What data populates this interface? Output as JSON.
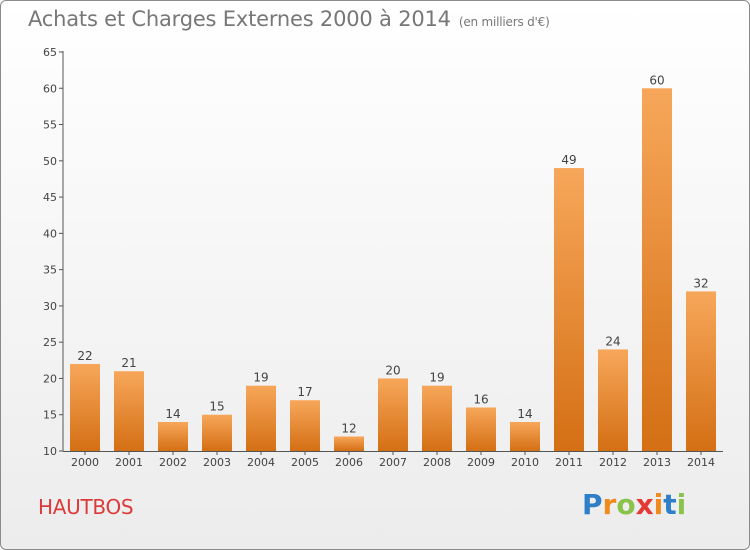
{
  "chart_data": {
    "type": "bar",
    "title": "Achats et Charges Externes 2000 à 2014",
    "subtitle": "(en milliers d'€)",
    "categories": [
      "2000",
      "2001",
      "2002",
      "2003",
      "2004",
      "2005",
      "2006",
      "2007",
      "2008",
      "2009",
      "2010",
      "2011",
      "2012",
      "2013",
      "2014"
    ],
    "values": [
      22,
      21,
      14,
      15,
      19,
      17,
      12,
      20,
      19,
      16,
      14,
      49,
      24,
      60,
      32
    ],
    "ylim": [
      10,
      65
    ],
    "yticks": [
      10,
      15,
      20,
      25,
      30,
      35,
      40,
      45,
      50,
      55,
      60,
      65
    ],
    "grid": false,
    "bar_color_top": "#f7a75a",
    "bar_color_bottom": "#d46f14"
  },
  "footer": {
    "city": "HAUTBOS",
    "logo_letters": [
      "P",
      "r",
      "o",
      "x",
      "i",
      "t",
      "i"
    ],
    "logo_colors": [
      "#2e7ec8",
      "#f08a1c",
      "#8bc34a",
      "#e53935",
      "#f08a1c",
      "#2e7ec8",
      "#8bc34a"
    ]
  },
  "colors": {
    "title": "#777777",
    "city": "#dd3b3b",
    "axis": "#555555"
  }
}
